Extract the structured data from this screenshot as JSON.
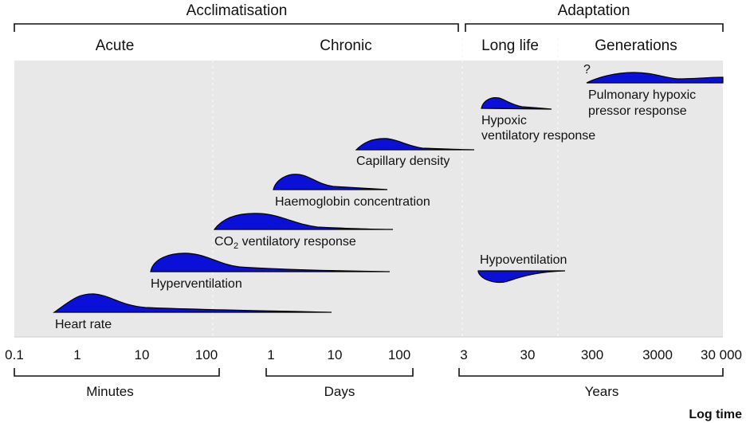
{
  "header": {
    "acclimatisation": "Acclimatisation",
    "adaptation": "Adaptation",
    "acute": "Acute",
    "chronic": "Chronic",
    "long_life": "Long life",
    "generations": "Generations",
    "question_mark": "?"
  },
  "responses": {
    "heart_rate": "Heart rate",
    "hyperventilation": "Hyperventilation",
    "co2_prefix": "CO",
    "co2_sub": "2",
    "co2_suffix": " ventilatory response",
    "haemoglobin": "Haemoglobin concentration",
    "capillary": "Capillary density",
    "hypoxic_line1": "Hypoxic",
    "hypoxic_line2": "ventilatory response",
    "pulmonary_line1": "Pulmonary hypoxic",
    "pulmonary_line2": "pressor response",
    "hypoventilation": "Hypoventilation"
  },
  "axis": {
    "ticks": [
      "0.1",
      "1",
      "10",
      "100",
      "1",
      "10",
      "100",
      "3",
      "30",
      "300",
      "3000",
      "30 000"
    ],
    "minutes": "Minutes",
    "days": "Days",
    "years": "Years",
    "log_time": "Log time"
  },
  "colors": {
    "response_fill": "#0a10d8",
    "panel_bg": "#e8e8e8"
  }
}
